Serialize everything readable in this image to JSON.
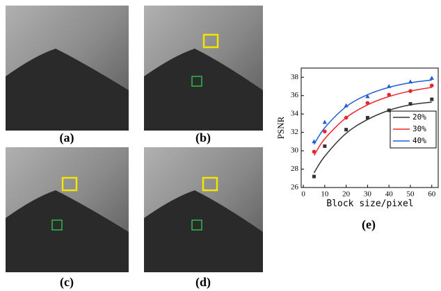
{
  "panels": [
    {
      "label": "(a)"
    },
    {
      "label": "(b)"
    },
    {
      "label": "(c)"
    },
    {
      "label": "(d)"
    }
  ],
  "chart_data": {
    "type": "scatter",
    "label": "(e)",
    "x_label": "Block size/pixel",
    "y_label": "PSNR",
    "x": [
      5,
      10,
      20,
      30,
      40,
      50,
      60
    ],
    "xlim": [
      -1,
      63
    ],
    "xticks": [
      0,
      10,
      20,
      30,
      40,
      50,
      60
    ],
    "ylim": [
      26,
      39
    ],
    "yticks": [
      26,
      28,
      30,
      32,
      34,
      36,
      38
    ],
    "legend": "right",
    "series": [
      {
        "name": "20%",
        "color": "#333333",
        "marker": "square",
        "values": [
          27.2,
          30.5,
          32.3,
          33.6,
          34.4,
          35.1,
          35.6
        ],
        "fit_values": [
          27.6,
          29.4,
          31.9,
          33.4,
          34.4,
          35.0,
          35.3
        ]
      },
      {
        "name": "30%",
        "color": "#e8262d",
        "marker": "circle",
        "values": [
          29.9,
          32.1,
          33.6,
          35.2,
          36.1,
          36.5,
          37.1
        ],
        "fit_values": [
          29.5,
          31.3,
          33.6,
          35.0,
          35.9,
          36.5,
          36.9
        ]
      },
      {
        "name": "40%",
        "color": "#1f5fd6",
        "marker": "triangle",
        "values": [
          31.0,
          33.1,
          34.9,
          35.9,
          37.0,
          37.5,
          37.9
        ],
        "fit_values": [
          30.7,
          32.5,
          34.8,
          36.1,
          36.9,
          37.4,
          37.7
        ]
      }
    ]
  }
}
